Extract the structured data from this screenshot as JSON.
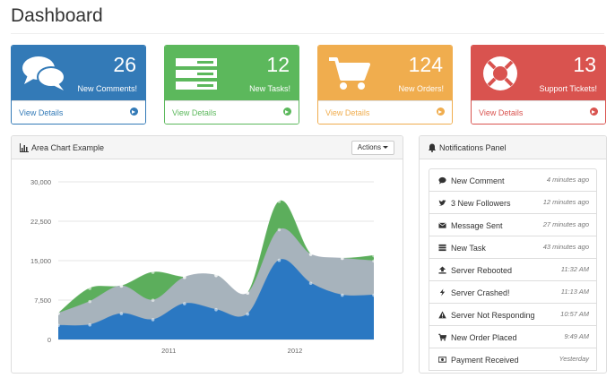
{
  "page": {
    "title": "Dashboard"
  },
  "cards": [
    {
      "count": "26",
      "label": "New Comments!",
      "link": "View Details",
      "color": "#337ab7",
      "icon": "comments-icon"
    },
    {
      "count": "12",
      "label": "New Tasks!",
      "link": "View Details",
      "color": "#5cb85c",
      "icon": "tasks-icon"
    },
    {
      "count": "124",
      "label": "New Orders!",
      "link": "View Details",
      "color": "#f0ad4e",
      "icon": "shopping-cart-icon"
    },
    {
      "count": "13",
      "label": "Support Tickets!",
      "link": "View Details",
      "color": "#d9534f",
      "icon": "life-ring-icon"
    }
  ],
  "chart_panel": {
    "title": "Area Chart Example",
    "actions_label": "Actions",
    "icon": "bar-chart-icon"
  },
  "chart_data": {
    "type": "area",
    "title": "",
    "x": [
      0,
      1,
      2,
      3,
      4,
      5,
      6,
      7,
      8,
      9,
      10
    ],
    "xticks": [
      {
        "at": 3.5,
        "label": "2011"
      },
      {
        "at": 7.5,
        "label": "2012"
      }
    ],
    "yticks": [
      "0",
      "7,500",
      "15,000",
      "22,500",
      "30,000"
    ],
    "ylim": [
      0,
      30000
    ],
    "grid": true,
    "legend": "none",
    "stacked": true,
    "series": [
      {
        "color": "#2b78c2",
        "values": [
          2666,
          2778,
          4912,
          3767,
          6810,
          5670,
          4820,
          15073,
          10687,
          8432,
          8432
        ]
      },
      {
        "color": "#a7b3bc",
        "values": [
          2294,
          4441,
          5250,
          3700,
          5000,
          6500,
          4000,
          5800,
          5500,
          7000,
          6500
        ]
      },
      {
        "color": "#5cae5c",
        "values": [
          0,
          2500,
          0,
          5300,
          0,
          0,
          0,
          5400,
          0,
          0,
          1000
        ]
      }
    ]
  },
  "notifications": {
    "title": "Notifications Panel",
    "items": [
      {
        "text": "New Comment",
        "time": "4 minutes ago",
        "icon": "comment-icon"
      },
      {
        "text": "3 New Followers",
        "time": "12 minutes ago",
        "icon": "twitter-icon"
      },
      {
        "text": "Message Sent",
        "time": "27 minutes ago",
        "icon": "envelope-icon"
      },
      {
        "text": "New Task",
        "time": "43 minutes ago",
        "icon": "tasks-icon"
      },
      {
        "text": "Server Rebooted",
        "time": "11:32 AM",
        "icon": "upload-icon"
      },
      {
        "text": "Server Crashed!",
        "time": "11:13 AM",
        "icon": "bolt-icon"
      },
      {
        "text": "Server Not Responding",
        "time": "10:57 AM",
        "icon": "warning-icon"
      },
      {
        "text": "New Order Placed",
        "time": "9:49 AM",
        "icon": "shopping-cart-icon"
      },
      {
        "text": "Payment Received",
        "time": "Yesterday",
        "icon": "money-icon"
      }
    ]
  }
}
